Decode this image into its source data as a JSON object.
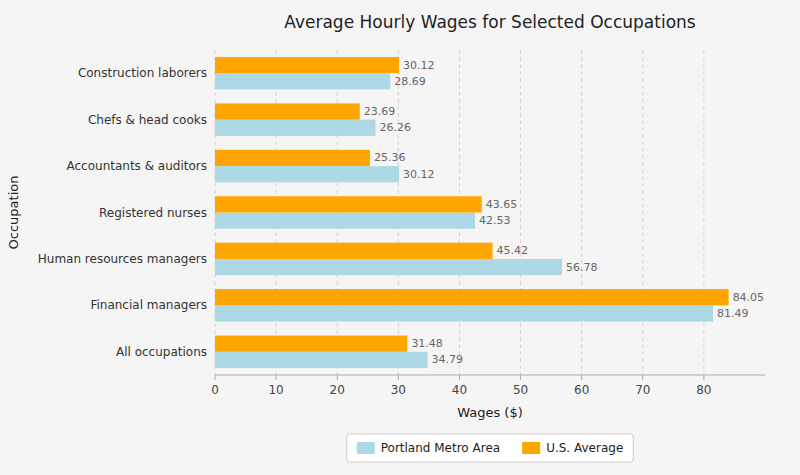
{
  "chart_data": {
    "type": "bar",
    "orientation": "horizontal",
    "title": "Average Hourly Wages for Selected Occupations",
    "xlabel": "Wages ($)",
    "ylabel": "Occupation",
    "categories": [
      "All occupations",
      "Financial managers",
      "Human resources managers",
      "Registered nurses",
      "Accountants & auditors",
      "Chefs & head cooks",
      "Construction laborers"
    ],
    "series": [
      {
        "name": "Portland Metro Area",
        "color": "#ADD8E6",
        "values": [
          34.79,
          81.49,
          56.78,
          42.53,
          30.12,
          26.26,
          28.69
        ]
      },
      {
        "name": "U.S. Average",
        "color": "#FFA500",
        "values": [
          31.48,
          84.05,
          45.42,
          43.65,
          25.36,
          23.69,
          30.12
        ]
      }
    ],
    "xlim": [
      0,
      90
    ],
    "xticks": [
      0,
      10,
      20,
      30,
      40,
      50,
      60,
      70,
      80
    ],
    "grid": true,
    "legend": "bottom",
    "data_labels": true
  }
}
